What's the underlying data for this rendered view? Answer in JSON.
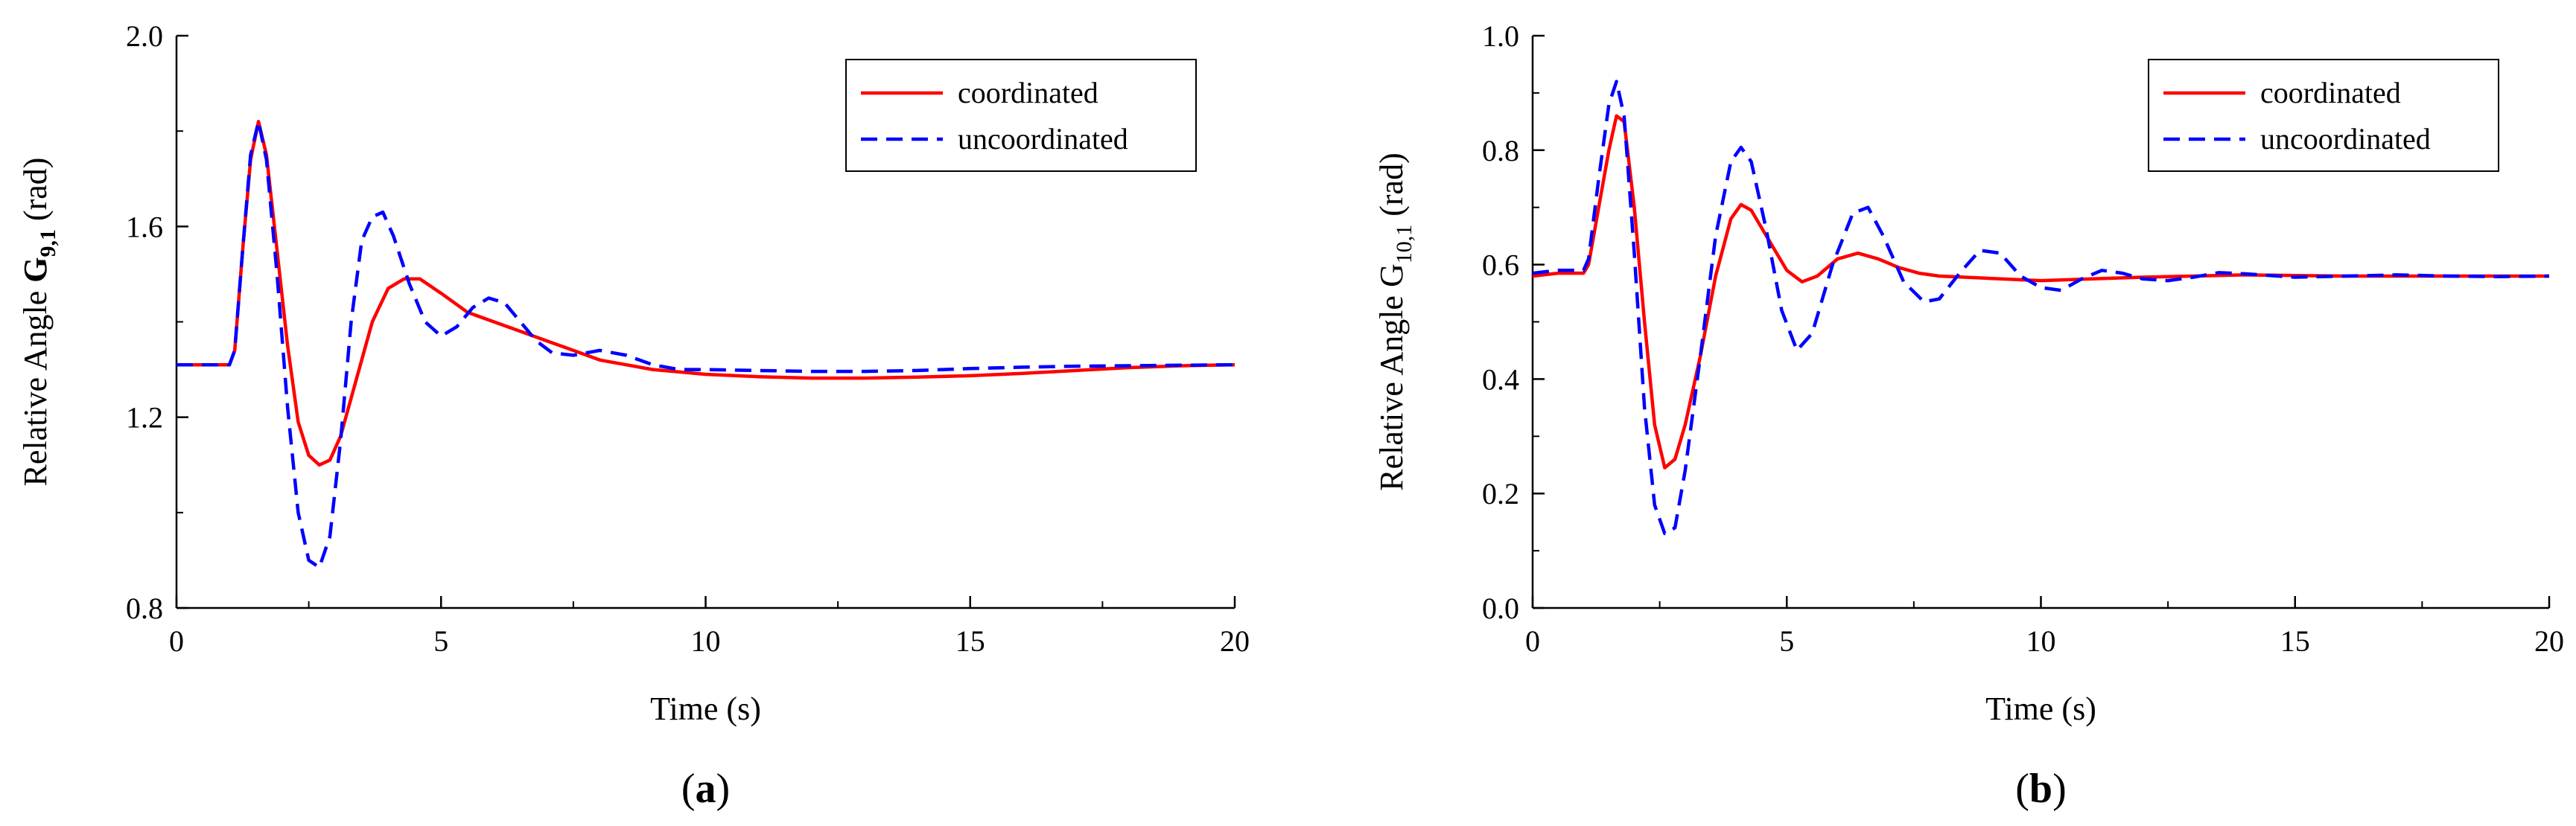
{
  "chart_data": [
    {
      "type": "line",
      "panel_label": "(a)",
      "panel_label_parts": {
        "open": "(",
        "letter": "a",
        "close": ")"
      },
      "xlabel": "Time (s)",
      "ylabel": {
        "prefix": "Relative Angle ",
        "symbol": "G",
        "subscript": "9,1",
        "unit": " (rad)"
      },
      "xlim": [
        0,
        20
      ],
      "ylim": [
        0.8,
        2.0
      ],
      "xticks": [
        0,
        5,
        10,
        15,
        20
      ],
      "yticks": [
        0.8,
        1.2,
        1.6,
        2.0
      ],
      "xtick_labels": [
        "0",
        "5",
        "10",
        "15",
        "20"
      ],
      "ytick_labels": [
        "0.8",
        "1.2",
        "1.6",
        "2.0"
      ],
      "legend_position": "top-right",
      "series": [
        {
          "name": "coordinated",
          "color": "#ff0000",
          "dash": "solid",
          "points": [
            [
              0,
              1.31
            ],
            [
              1.0,
              1.31
            ],
            [
              1.1,
              1.34
            ],
            [
              1.25,
              1.55
            ],
            [
              1.4,
              1.74
            ],
            [
              1.55,
              1.82
            ],
            [
              1.7,
              1.75
            ],
            [
              1.9,
              1.55
            ],
            [
              2.1,
              1.35
            ],
            [
              2.3,
              1.19
            ],
            [
              2.5,
              1.12
            ],
            [
              2.7,
              1.1
            ],
            [
              2.9,
              1.11
            ],
            [
              3.1,
              1.16
            ],
            [
              3.4,
              1.28
            ],
            [
              3.7,
              1.4
            ],
            [
              4.0,
              1.47
            ],
            [
              4.3,
              1.49
            ],
            [
              4.6,
              1.49
            ],
            [
              5.0,
              1.46
            ],
            [
              5.5,
              1.42
            ],
            [
              6.0,
              1.4
            ],
            [
              6.5,
              1.38
            ],
            [
              7.0,
              1.36
            ],
            [
              7.5,
              1.34
            ],
            [
              8.0,
              1.32
            ],
            [
              8.5,
              1.31
            ],
            [
              9.0,
              1.3
            ],
            [
              10.0,
              1.29
            ],
            [
              11.0,
              1.285
            ],
            [
              12.0,
              1.282
            ],
            [
              13.0,
              1.282
            ],
            [
              14.0,
              1.284
            ],
            [
              15.0,
              1.287
            ],
            [
              16.0,
              1.292
            ],
            [
              17.0,
              1.298
            ],
            [
              18.0,
              1.304
            ],
            [
              19.0,
              1.308
            ],
            [
              20.0,
              1.31
            ]
          ]
        },
        {
          "name": "uncoordinated",
          "color": "#0000ff",
          "dash": "dashed",
          "points": [
            [
              0,
              1.31
            ],
            [
              1.0,
              1.31
            ],
            [
              1.1,
              1.34
            ],
            [
              1.25,
              1.55
            ],
            [
              1.4,
              1.75
            ],
            [
              1.55,
              1.82
            ],
            [
              1.7,
              1.74
            ],
            [
              1.9,
              1.5
            ],
            [
              2.1,
              1.22
            ],
            [
              2.3,
              1.0
            ],
            [
              2.5,
              0.9
            ],
            [
              2.7,
              0.885
            ],
            [
              2.9,
              0.95
            ],
            [
              3.1,
              1.15
            ],
            [
              3.3,
              1.4
            ],
            [
              3.5,
              1.57
            ],
            [
              3.7,
              1.62
            ],
            [
              3.9,
              1.63
            ],
            [
              4.1,
              1.58
            ],
            [
              4.4,
              1.48
            ],
            [
              4.7,
              1.4
            ],
            [
              5.0,
              1.37
            ],
            [
              5.3,
              1.39
            ],
            [
              5.6,
              1.43
            ],
            [
              5.9,
              1.45
            ],
            [
              6.2,
              1.44
            ],
            [
              6.5,
              1.4
            ],
            [
              6.8,
              1.36
            ],
            [
              7.1,
              1.335
            ],
            [
              7.5,
              1.33
            ],
            [
              8.0,
              1.34
            ],
            [
              8.5,
              1.33
            ],
            [
              9.0,
              1.31
            ],
            [
              9.5,
              1.3
            ],
            [
              10.0,
              1.3
            ],
            [
              11.0,
              1.298
            ],
            [
              12.0,
              1.296
            ],
            [
              13.0,
              1.296
            ],
            [
              14.0,
              1.298
            ],
            [
              15.0,
              1.302
            ],
            [
              16.0,
              1.305
            ],
            [
              17.0,
              1.307
            ],
            [
              18.0,
              1.308
            ],
            [
              19.0,
              1.309
            ],
            [
              20.0,
              1.31
            ]
          ]
        }
      ]
    },
    {
      "type": "line",
      "panel_label": "(b)",
      "panel_label_parts": {
        "open": "(",
        "letter": "b",
        "close": ")"
      },
      "xlabel": "Time (s)",
      "ylabel": {
        "prefix": "Relative Angle G",
        "symbol": "",
        "subscript": "10,1",
        "unit": " (rad)"
      },
      "xlim": [
        0,
        20
      ],
      "ylim": [
        0.0,
        1.0
      ],
      "xticks": [
        0,
        5,
        10,
        15,
        20
      ],
      "yticks": [
        0.0,
        0.2,
        0.4,
        0.6,
        0.8,
        1.0
      ],
      "xtick_labels": [
        "0",
        "5",
        "10",
        "15",
        "20"
      ],
      "ytick_labels": [
        "0.0",
        "0.2",
        "0.4",
        "0.6",
        "0.8",
        "1.0"
      ],
      "legend_position": "top-right",
      "series": [
        {
          "name": "coordinated",
          "color": "#ff0000",
          "dash": "solid",
          "points": [
            [
              0,
              0.58
            ],
            [
              0.5,
              0.585
            ],
            [
              1.0,
              0.585
            ],
            [
              1.1,
              0.6
            ],
            [
              1.3,
              0.7
            ],
            [
              1.5,
              0.8
            ],
            [
              1.65,
              0.86
            ],
            [
              1.8,
              0.85
            ],
            [
              2.0,
              0.7
            ],
            [
              2.2,
              0.5
            ],
            [
              2.4,
              0.32
            ],
            [
              2.6,
              0.245
            ],
            [
              2.8,
              0.26
            ],
            [
              3.0,
              0.32
            ],
            [
              3.3,
              0.44
            ],
            [
              3.6,
              0.58
            ],
            [
              3.9,
              0.68
            ],
            [
              4.1,
              0.705
            ],
            [
              4.3,
              0.695
            ],
            [
              4.6,
              0.65
            ],
            [
              5.0,
              0.59
            ],
            [
              5.3,
              0.57
            ],
            [
              5.6,
              0.58
            ],
            [
              6.0,
              0.61
            ],
            [
              6.4,
              0.62
            ],
            [
              6.8,
              0.61
            ],
            [
              7.2,
              0.595
            ],
            [
              7.6,
              0.585
            ],
            [
              8.0,
              0.58
            ],
            [
              8.5,
              0.578
            ],
            [
              9.0,
              0.576
            ],
            [
              9.5,
              0.574
            ],
            [
              10.0,
              0.572
            ],
            [
              11.0,
              0.575
            ],
            [
              12.0,
              0.578
            ],
            [
              13.0,
              0.58
            ],
            [
              14.0,
              0.582
            ],
            [
              15.0,
              0.581
            ],
            [
              16.0,
              0.58
            ],
            [
              17.0,
              0.58
            ],
            [
              18.0,
              0.58
            ],
            [
              19.0,
              0.58
            ],
            [
              20.0,
              0.58
            ]
          ]
        },
        {
          "name": "uncoordinated",
          "color": "#0000ff",
          "dash": "dashed",
          "points": [
            [
              0,
              0.585
            ],
            [
              0.5,
              0.59
            ],
            [
              1.0,
              0.59
            ],
            [
              1.1,
              0.61
            ],
            [
              1.3,
              0.75
            ],
            [
              1.5,
              0.88
            ],
            [
              1.65,
              0.92
            ],
            [
              1.8,
              0.86
            ],
            [
              2.0,
              0.62
            ],
            [
              2.2,
              0.35
            ],
            [
              2.4,
              0.18
            ],
            [
              2.6,
              0.13
            ],
            [
              2.8,
              0.14
            ],
            [
              3.0,
              0.24
            ],
            [
              3.3,
              0.44
            ],
            [
              3.6,
              0.65
            ],
            [
              3.9,
              0.78
            ],
            [
              4.1,
              0.805
            ],
            [
              4.3,
              0.78
            ],
            [
              4.6,
              0.66
            ],
            [
              4.9,
              0.52
            ],
            [
              5.2,
              0.45
            ],
            [
              5.5,
              0.48
            ],
            [
              5.9,
              0.6
            ],
            [
              6.3,
              0.69
            ],
            [
              6.6,
              0.7
            ],
            [
              6.9,
              0.65
            ],
            [
              7.3,
              0.57
            ],
            [
              7.7,
              0.535
            ],
            [
              8.0,
              0.54
            ],
            [
              8.4,
              0.585
            ],
            [
              8.8,
              0.625
            ],
            [
              9.2,
              0.62
            ],
            [
              9.6,
              0.58
            ],
            [
              10.0,
              0.56
            ],
            [
              10.4,
              0.555
            ],
            [
              10.8,
              0.575
            ],
            [
              11.2,
              0.59
            ],
            [
              11.6,
              0.585
            ],
            [
              12.0,
              0.575
            ],
            [
              12.5,
              0.572
            ],
            [
              13.0,
              0.578
            ],
            [
              13.5,
              0.586
            ],
            [
              14.0,
              0.584
            ],
            [
              15.0,
              0.578
            ],
            [
              16.0,
              0.58
            ],
            [
              17.0,
              0.582
            ],
            [
              18.0,
              0.58
            ],
            [
              19.0,
              0.579
            ],
            [
              20.0,
              0.58
            ]
          ]
        }
      ]
    }
  ]
}
